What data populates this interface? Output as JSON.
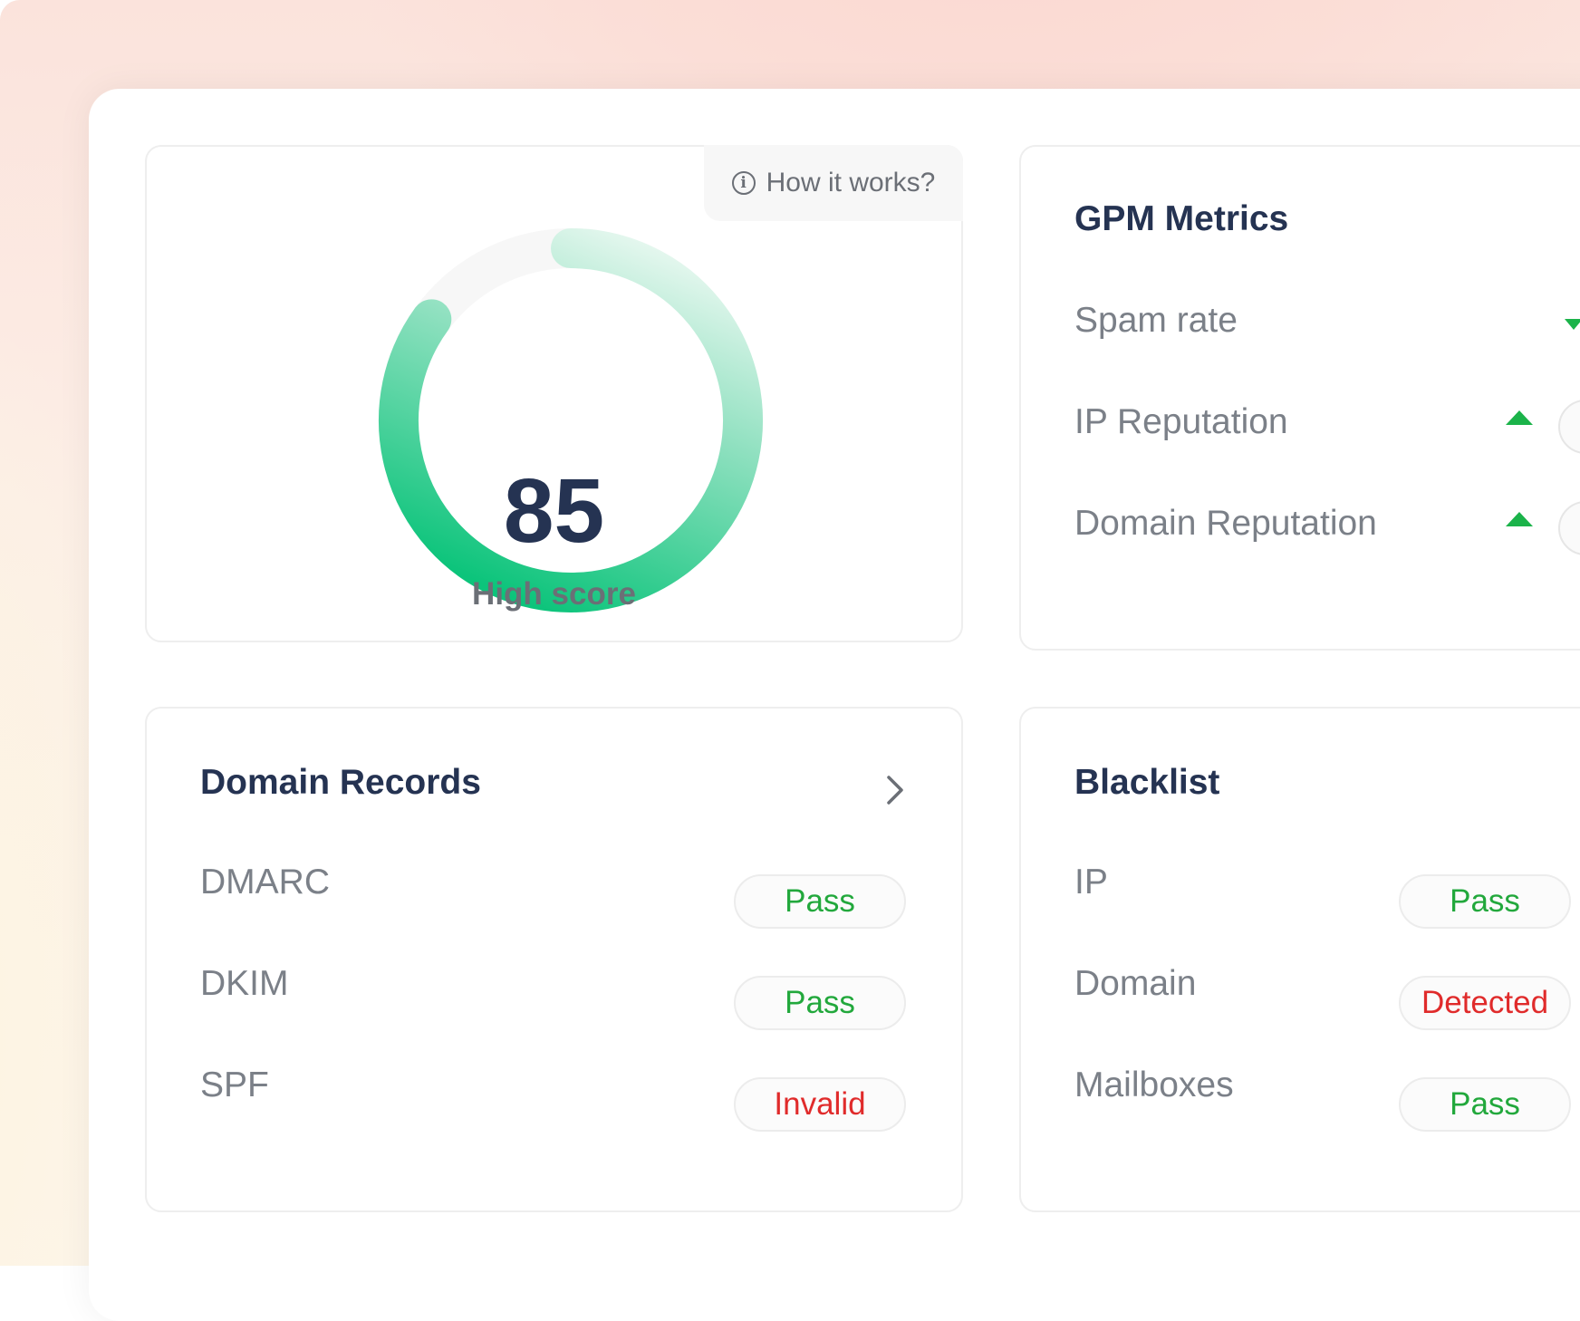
{
  "score": {
    "how_it_works_label": "How it works?",
    "value": "85",
    "caption": "High score",
    "progress_fraction": 0.85
  },
  "gpm": {
    "title": "GPM Metrics",
    "rows": [
      {
        "label": "Spam rate",
        "trend": "down"
      },
      {
        "label": "IP Reputation",
        "trend": "up"
      },
      {
        "label": "Domain Reputation",
        "trend": "up"
      }
    ]
  },
  "records": {
    "title": "Domain Records",
    "rows": [
      {
        "label": "DMARC",
        "status": "Pass"
      },
      {
        "label": "DKIM",
        "status": "Pass"
      },
      {
        "label": "SPF",
        "status": "Invalid"
      }
    ]
  },
  "blacklist": {
    "title": "Blacklist",
    "rows": [
      {
        "label": "IP",
        "status": "Pass"
      },
      {
        "label": "Domain",
        "status": "Detected"
      },
      {
        "label": "Mailboxes",
        "status": "Pass"
      }
    ]
  },
  "colors": {
    "accent_green": "#0dc47c",
    "pass": "#22a83c",
    "fail": "#e02b2b",
    "heading": "#253352",
    "muted": "#7b8088"
  },
  "icons": {
    "info": "info-icon",
    "chevron": "chevron-right-icon",
    "trend_up": "triangle-up-icon",
    "trend_down": "triangle-down-icon"
  }
}
